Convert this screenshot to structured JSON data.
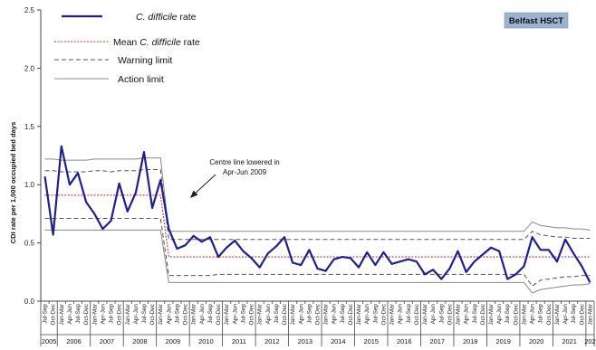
{
  "chart_data": {
    "type": "line",
    "title": "",
    "badge": "Belfast HSCT",
    "ylabel": "CDI rate per 1,000 occupied bed days",
    "xlabel": "",
    "ylim": [
      0,
      2.5
    ],
    "y_ticks": [
      "0.0",
      "0.5",
      "1.0",
      "1.5",
      "2.0",
      "2.5"
    ],
    "grid": false,
    "legend_position": "top-left",
    "legend": [
      {
        "label_italic": "C. difficile",
        "label_after": " rate"
      },
      {
        "label_before": "Mean ",
        "label_italic": "C. difficile",
        "label_after": " rate"
      },
      {
        "label_before": "Warning limit"
      },
      {
        "label_before": "Action limit"
      }
    ],
    "annotation": {
      "lines": [
        "Centre line lowered in",
        "Apr-Jun 2009"
      ]
    },
    "x": [
      "Jul-Sep",
      "Oct-Dec",
      "Jan-Mar",
      "Apr-Jun",
      "Jul-Sep",
      "Oct-Dec",
      "Jan-Mar",
      "Apr-Jun",
      "Jul-Sep",
      "Oct-Dec",
      "Jan-Mar",
      "Apr-Jun",
      "Jul-Sep",
      "Oct-Dec",
      "Jan-Mar",
      "Apr-Jun",
      "Jul-Sep",
      "Oct-Dec",
      "Jan-Mar",
      "Apr-Jun",
      "Jul-Sep",
      "Oct-Dec",
      "Jan-Mar",
      "Apr-Jun",
      "Jul-Sep",
      "Oct-Dec",
      "Jan-Mar",
      "Apr-Jun",
      "Jul-Sep",
      "Oct-Dec",
      "Jan-Mar",
      "Apr-Jun",
      "Jul-Sep",
      "Oct-Dec",
      "Jan-Mar",
      "Apr-Jun",
      "Jul-Sep",
      "Oct-Dec",
      "Jan-Mar",
      "Apr-Jun",
      "Jul-Sep",
      "Oct-Dec",
      "Jan-Mar",
      "Apr-Jun",
      "Jul-Sep",
      "Oct-Dec",
      "Jan-Mar",
      "Apr-Jun",
      "Jul-Sep",
      "Oct-Dec",
      "Jan-Mar",
      "Apr-Jun",
      "Jul-Sep",
      "Oct-Dec",
      "Jan-Mar",
      "Apr-Jun",
      "Jul-Sep",
      "Oct-Dec",
      "Jan-Mar",
      "Apr-Jun",
      "Jul-Sep",
      "Oct-Dec",
      "Jan-Mar",
      "Apr-Jun",
      "Jul-Sep",
      "Oct-Dec",
      "Jan-Mar"
    ],
    "years": [
      {
        "label": "2005",
        "quarters": 2
      },
      {
        "label": "2006",
        "quarters": 4
      },
      {
        "label": "2007",
        "quarters": 4
      },
      {
        "label": "2008",
        "quarters": 4
      },
      {
        "label": "2009",
        "quarters": 4
      },
      {
        "label": "2010",
        "quarters": 4
      },
      {
        "label": "2011",
        "quarters": 4
      },
      {
        "label": "2012",
        "quarters": 4
      },
      {
        "label": "2013",
        "quarters": 4
      },
      {
        "label": "2014",
        "quarters": 4
      },
      {
        "label": "2015",
        "quarters": 4
      },
      {
        "label": "2016",
        "quarters": 4
      },
      {
        "label": "2017",
        "quarters": 4
      },
      {
        "label": "2018",
        "quarters": 4
      },
      {
        "label": "2019",
        "quarters": 4
      },
      {
        "label": "2020",
        "quarters": 4
      },
      {
        "label": "2021",
        "quarters": 4
      },
      {
        "label": "202",
        "quarters": 1
      }
    ],
    "series": [
      {
        "name": "C. difficile rate",
        "style": "solid-thick",
        "color": "#1f1f8f",
        "values": [
          1.07,
          0.57,
          1.33,
          1.0,
          1.1,
          0.85,
          0.75,
          0.62,
          0.69,
          1.01,
          0.77,
          0.93,
          1.28,
          0.8,
          1.04,
          0.62,
          0.45,
          0.48,
          0.56,
          0.51,
          0.55,
          0.38,
          0.46,
          0.52,
          0.43,
          0.37,
          0.29,
          0.41,
          0.47,
          0.55,
          0.33,
          0.31,
          0.44,
          0.28,
          0.26,
          0.36,
          0.38,
          0.37,
          0.29,
          0.42,
          0.31,
          0.42,
          0.32,
          0.34,
          0.36,
          0.34,
          0.23,
          0.27,
          0.19,
          0.28,
          0.43,
          0.25,
          0.34,
          0.4,
          0.46,
          0.43,
          0.19,
          0.23,
          0.3,
          0.55,
          0.44,
          0.44,
          0.34,
          0.53,
          0.41,
          0.3,
          0.16
        ]
      },
      {
        "name": "Mean C. difficile rate",
        "style": "dotted",
        "color": "#cc3333",
        "values": [
          0.91,
          0.91,
          0.91,
          0.91,
          0.91,
          0.91,
          0.91,
          0.91,
          0.91,
          0.91,
          0.91,
          0.91,
          0.91,
          0.91,
          0.91,
          0.38,
          0.38,
          0.38,
          0.38,
          0.38,
          0.38,
          0.38,
          0.38,
          0.38,
          0.38,
          0.38,
          0.38,
          0.38,
          0.38,
          0.38,
          0.38,
          0.38,
          0.38,
          0.38,
          0.38,
          0.38,
          0.38,
          0.38,
          0.38,
          0.38,
          0.38,
          0.38,
          0.38,
          0.38,
          0.38,
          0.38,
          0.38,
          0.38,
          0.38,
          0.38,
          0.38,
          0.38,
          0.38,
          0.38,
          0.38,
          0.38,
          0.38,
          0.38,
          0.38,
          0.38,
          0.38,
          0.38,
          0.38,
          0.38,
          0.38,
          0.38,
          0.38
        ]
      },
      {
        "name": "Upper warning limit",
        "style": "dashed",
        "color": "#555555",
        "values": [
          1.12,
          1.12,
          1.11,
          1.11,
          1.11,
          1.11,
          1.12,
          1.12,
          1.11,
          1.12,
          1.12,
          1.12,
          1.13,
          1.13,
          1.13,
          0.53,
          0.53,
          0.53,
          0.53,
          0.53,
          0.53,
          0.53,
          0.53,
          0.53,
          0.53,
          0.53,
          0.53,
          0.53,
          0.53,
          0.53,
          0.53,
          0.53,
          0.53,
          0.53,
          0.53,
          0.53,
          0.53,
          0.53,
          0.53,
          0.53,
          0.53,
          0.53,
          0.53,
          0.53,
          0.53,
          0.53,
          0.53,
          0.53,
          0.53,
          0.53,
          0.53,
          0.53,
          0.53,
          0.53,
          0.53,
          0.53,
          0.53,
          0.53,
          0.53,
          0.6,
          0.57,
          0.56,
          0.55,
          0.55,
          0.54,
          0.54,
          0.54
        ]
      },
      {
        "name": "Lower warning limit",
        "style": "dashed",
        "color": "#555555",
        "values": [
          0.71,
          0.71,
          0.71,
          0.71,
          0.71,
          0.71,
          0.71,
          0.71,
          0.71,
          0.71,
          0.71,
          0.71,
          0.71,
          0.71,
          0.71,
          0.22,
          0.22,
          0.22,
          0.22,
          0.22,
          0.22,
          0.23,
          0.23,
          0.23,
          0.23,
          0.23,
          0.23,
          0.23,
          0.23,
          0.23,
          0.23,
          0.23,
          0.23,
          0.23,
          0.23,
          0.23,
          0.23,
          0.23,
          0.23,
          0.23,
          0.23,
          0.23,
          0.23,
          0.23,
          0.23,
          0.23,
          0.23,
          0.23,
          0.23,
          0.23,
          0.23,
          0.23,
          0.23,
          0.23,
          0.23,
          0.23,
          0.23,
          0.23,
          0.23,
          0.13,
          0.18,
          0.19,
          0.2,
          0.21,
          0.21,
          0.22,
          0.22
        ]
      },
      {
        "name": "Upper action limit",
        "style": "solid-thin",
        "color": "#888888",
        "values": [
          1.22,
          1.22,
          1.21,
          1.21,
          1.21,
          1.21,
          1.22,
          1.22,
          1.22,
          1.22,
          1.22,
          1.22,
          1.23,
          1.23,
          1.23,
          0.6,
          0.6,
          0.6,
          0.6,
          0.6,
          0.6,
          0.6,
          0.6,
          0.6,
          0.6,
          0.6,
          0.6,
          0.6,
          0.6,
          0.6,
          0.6,
          0.6,
          0.6,
          0.6,
          0.6,
          0.6,
          0.6,
          0.6,
          0.6,
          0.6,
          0.6,
          0.6,
          0.6,
          0.6,
          0.6,
          0.6,
          0.6,
          0.6,
          0.6,
          0.6,
          0.6,
          0.6,
          0.6,
          0.6,
          0.6,
          0.6,
          0.6,
          0.6,
          0.6,
          0.68,
          0.65,
          0.64,
          0.63,
          0.63,
          0.62,
          0.62,
          0.61
        ]
      },
      {
        "name": "Lower action limit",
        "style": "solid-thin",
        "color": "#888888",
        "values": [
          0.61,
          0.61,
          0.61,
          0.61,
          0.61,
          0.61,
          0.61,
          0.61,
          0.61,
          0.61,
          0.61,
          0.61,
          0.61,
          0.61,
          0.61,
          0.16,
          0.16,
          0.16,
          0.16,
          0.16,
          0.16,
          0.16,
          0.16,
          0.16,
          0.16,
          0.16,
          0.16,
          0.16,
          0.16,
          0.16,
          0.16,
          0.16,
          0.16,
          0.16,
          0.16,
          0.16,
          0.16,
          0.16,
          0.16,
          0.16,
          0.16,
          0.16,
          0.16,
          0.16,
          0.16,
          0.16,
          0.16,
          0.16,
          0.16,
          0.16,
          0.16,
          0.16,
          0.16,
          0.16,
          0.16,
          0.16,
          0.16,
          0.16,
          0.16,
          0.07,
          0.1,
          0.11,
          0.12,
          0.13,
          0.14,
          0.14,
          0.15
        ]
      }
    ]
  }
}
